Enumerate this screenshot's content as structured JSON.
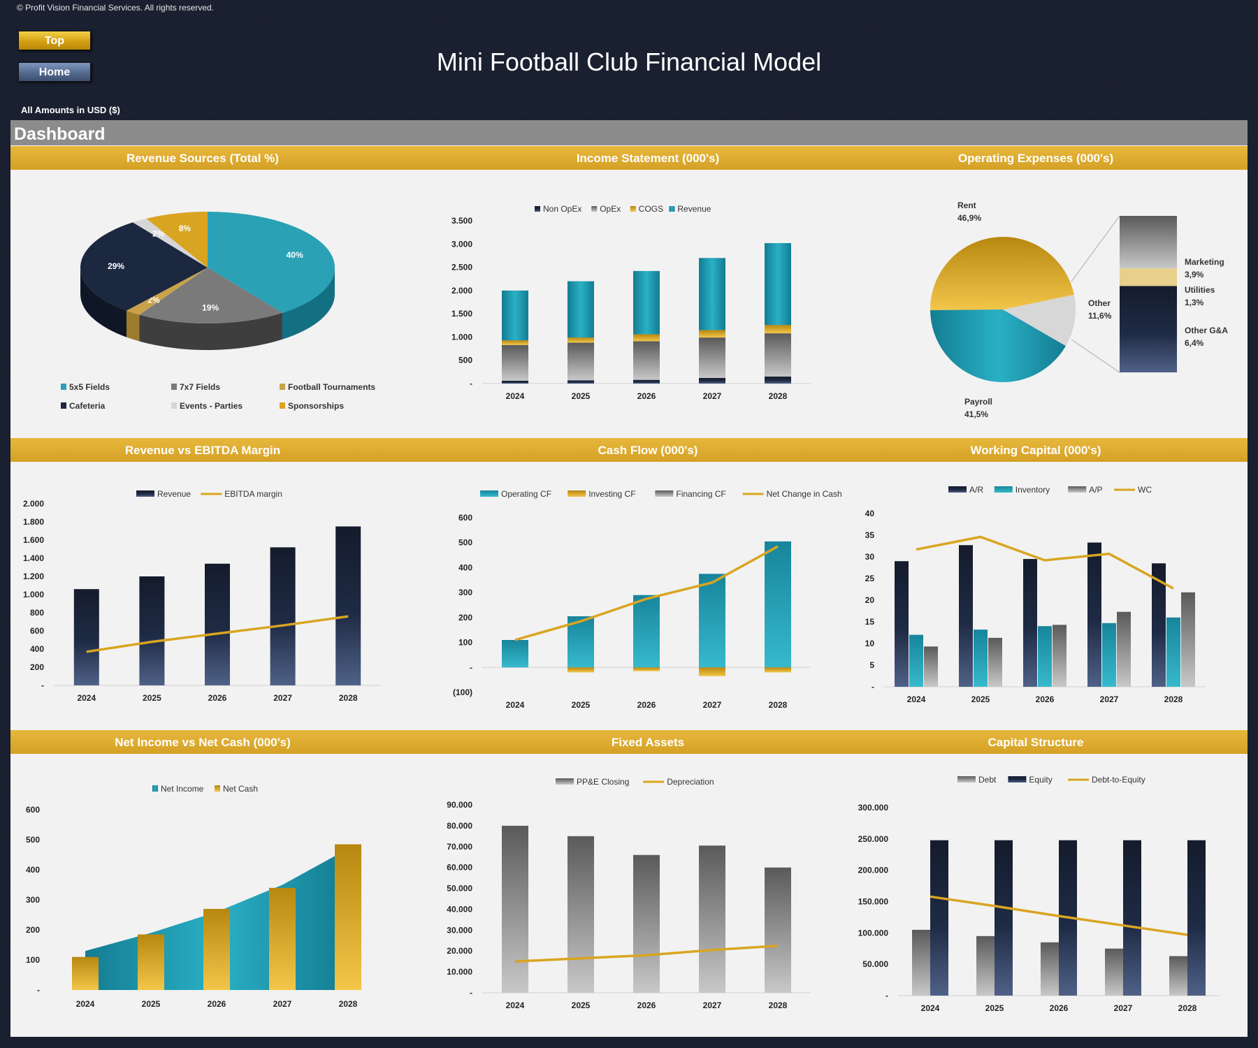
{
  "header": {
    "copyright": "© Profit Vision Financial Services. All rights reserved.",
    "top_label": "Top",
    "home_label": "Home",
    "title": "Mini Football Club Financial Model",
    "amounts": "All Amounts in  USD ($)",
    "dashboard": "Dashboard"
  },
  "sections": {
    "revenue_sources": "Revenue Sources (Total %)",
    "income_statement": "Income Statement (000's)",
    "operating_expenses": "Operating Expenses (000's)",
    "revenue_vs_ebitda": "Revenue vs EBITDA Margin",
    "cash_flow": "Cash Flow (000's)",
    "working_capital": "Working Capital (000's)",
    "net_income_vs_cash": "Net Income vs Net Cash (000's)",
    "fixed_assets": "Fixed Assets",
    "capital_structure": "Capital Structure"
  },
  "colors": {
    "teal": "#1e93a8",
    "navy": "#1c2a45",
    "gold": "#d9a521",
    "grey": "#8a8a8a",
    "light_grey": "#cfcfcf"
  },
  "chart_data": [
    {
      "id": "revenue_sources",
      "type": "pie",
      "labels": [
        "5x5 Fields",
        "7x7 Fields",
        "Football Tournaments",
        "Cafeteria",
        "Events - Parties",
        "Sponsorships"
      ],
      "values": [
        40,
        19,
        2,
        29,
        2,
        8
      ],
      "value_labels": [
        "40%",
        "19%",
        "2%",
        "29%",
        "2%",
        "8%"
      ],
      "legend": [
        "5x5 Fields",
        "7x7 Fields",
        "Football Tournaments",
        "Cafeteria",
        "Events - Parties",
        "Sponsorships"
      ]
    },
    {
      "id": "income_statement",
      "type": "bar",
      "stacked": true,
      "categories": [
        "2024",
        "2025",
        "2026",
        "2027",
        "2028"
      ],
      "series": [
        {
          "name": "Non OpEx",
          "values": [
            60,
            70,
            80,
            120,
            150
          ]
        },
        {
          "name": "OpEx",
          "values": [
            770,
            810,
            830,
            870,
            930
          ]
        },
        {
          "name": "COGS",
          "values": [
            100,
            110,
            150,
            160,
            180
          ]
        },
        {
          "name": "Revenue",
          "values": [
            1070,
            1210,
            1360,
            1550,
            1760
          ]
        }
      ],
      "y_ticks": [
        "3.500",
        "3.000",
        "2.500",
        "2.000",
        "1.500",
        "1.000",
        "500",
        "-"
      ],
      "ylim": [
        0,
        3500
      ]
    },
    {
      "id": "operating_expenses",
      "type": "pie",
      "labels": [
        "Rent",
        "Payroll",
        "Other",
        "Marketing",
        "Utilities",
        "Other G&A"
      ],
      "values": [
        46.9,
        41.5,
        11.6,
        3.9,
        1.3,
        6.4
      ],
      "value_labels": [
        "46,9%",
        "41,5%",
        "11,6%",
        "3,9%",
        "1,3%",
        "6,4%"
      ]
    },
    {
      "id": "revenue_vs_ebitda",
      "type": "bar",
      "categories": [
        "2024",
        "2025",
        "2026",
        "2027",
        "2028"
      ],
      "series": [
        {
          "name": "Revenue",
          "values": [
            1060,
            1200,
            1340,
            1520,
            1750
          ]
        },
        {
          "name": "EBITDA margin",
          "values": [
            370,
            480,
            570,
            660,
            760
          ]
        }
      ],
      "y_ticks": [
        "2.000",
        "1.800",
        "1.600",
        "1.400",
        "1.200",
        "1.000",
        "800",
        "600",
        "400",
        "200",
        "-"
      ],
      "ylim": [
        0,
        2000
      ]
    },
    {
      "id": "cash_flow",
      "type": "bar",
      "categories": [
        "2024",
        "2025",
        "2026",
        "2027",
        "2028"
      ],
      "series": [
        {
          "name": "Operating CF",
          "values": [
            110,
            205,
            290,
            375,
            505
          ]
        },
        {
          "name": "Investing CF",
          "values": [
            0,
            -20,
            -15,
            -35,
            -20
          ]
        },
        {
          "name": "Financing CF",
          "values": [
            0,
            0,
            0,
            0,
            0
          ]
        },
        {
          "name": "Net Change in Cash",
          "values": [
            110,
            185,
            275,
            340,
            485
          ]
        }
      ],
      "y_ticks": [
        "600",
        "500",
        "400",
        "300",
        "200",
        "100",
        "-",
        "(100)"
      ],
      "ylim": [
        -100,
        600
      ]
    },
    {
      "id": "working_capital",
      "type": "bar",
      "categories": [
        "2024",
        "2025",
        "2026",
        "2027",
        "2028"
      ],
      "series": [
        {
          "name": "A/R",
          "values": [
            29,
            32.7,
            29.5,
            33.3,
            28.5
          ]
        },
        {
          "name": "Inventory",
          "values": [
            12,
            13.2,
            14,
            14.7,
            16
          ]
        },
        {
          "name": "A/P",
          "values": [
            9.3,
            11.3,
            14.3,
            17.3,
            21.8
          ]
        },
        {
          "name": "WC",
          "values": [
            31.7,
            34.6,
            29.2,
            30.7,
            22.7
          ]
        }
      ],
      "y_ticks": [
        "40",
        "35",
        "30",
        "25",
        "20",
        "15",
        "10",
        "5",
        "-"
      ],
      "ylim": [
        0,
        40
      ]
    },
    {
      "id": "net_income_vs_cash",
      "type": "area",
      "categories": [
        "2024",
        "2025",
        "2026",
        "2027",
        "2028"
      ],
      "series": [
        {
          "name": "Net Income",
          "values": [
            130,
            190,
            260,
            350,
            470
          ]
        },
        {
          "name": "Net Cash",
          "values": [
            110,
            185,
            270,
            340,
            485
          ]
        }
      ],
      "y_ticks": [
        "600",
        "500",
        "400",
        "300",
        "200",
        "100",
        "-"
      ],
      "ylim": [
        0,
        600
      ]
    },
    {
      "id": "fixed_assets",
      "type": "bar",
      "categories": [
        "2024",
        "2025",
        "2026",
        "2027",
        "2028"
      ],
      "series": [
        {
          "name": "PP&E Closing",
          "values": [
            80000,
            75000,
            66000,
            70500,
            60000
          ]
        },
        {
          "name": "Depreciation",
          "values": [
            15000,
            16500,
            18000,
            20500,
            22500
          ]
        }
      ],
      "y_ticks": [
        "90.000",
        "80.000",
        "70.000",
        "60.000",
        "50.000",
        "40.000",
        "30.000",
        "20.000",
        "10.000",
        "-"
      ],
      "ylim": [
        0,
        90000
      ]
    },
    {
      "id": "capital_structure",
      "type": "bar",
      "categories": [
        "2024",
        "2025",
        "2026",
        "2027",
        "2028"
      ],
      "series": [
        {
          "name": "Debt",
          "values": [
            105000,
            95000,
            85000,
            75000,
            63000
          ]
        },
        {
          "name": "Equity",
          "values": [
            248000,
            248000,
            248000,
            248000,
            248000
          ]
        },
        {
          "name": "Debt-to-Equity",
          "values": [
            158000,
            143000,
            127000,
            112000,
            97000
          ]
        }
      ],
      "y_ticks": [
        "300.000",
        "250.000",
        "200.000",
        "150.000",
        "100.000",
        "50.000",
        "-"
      ],
      "ylim": [
        0,
        300000
      ]
    }
  ]
}
